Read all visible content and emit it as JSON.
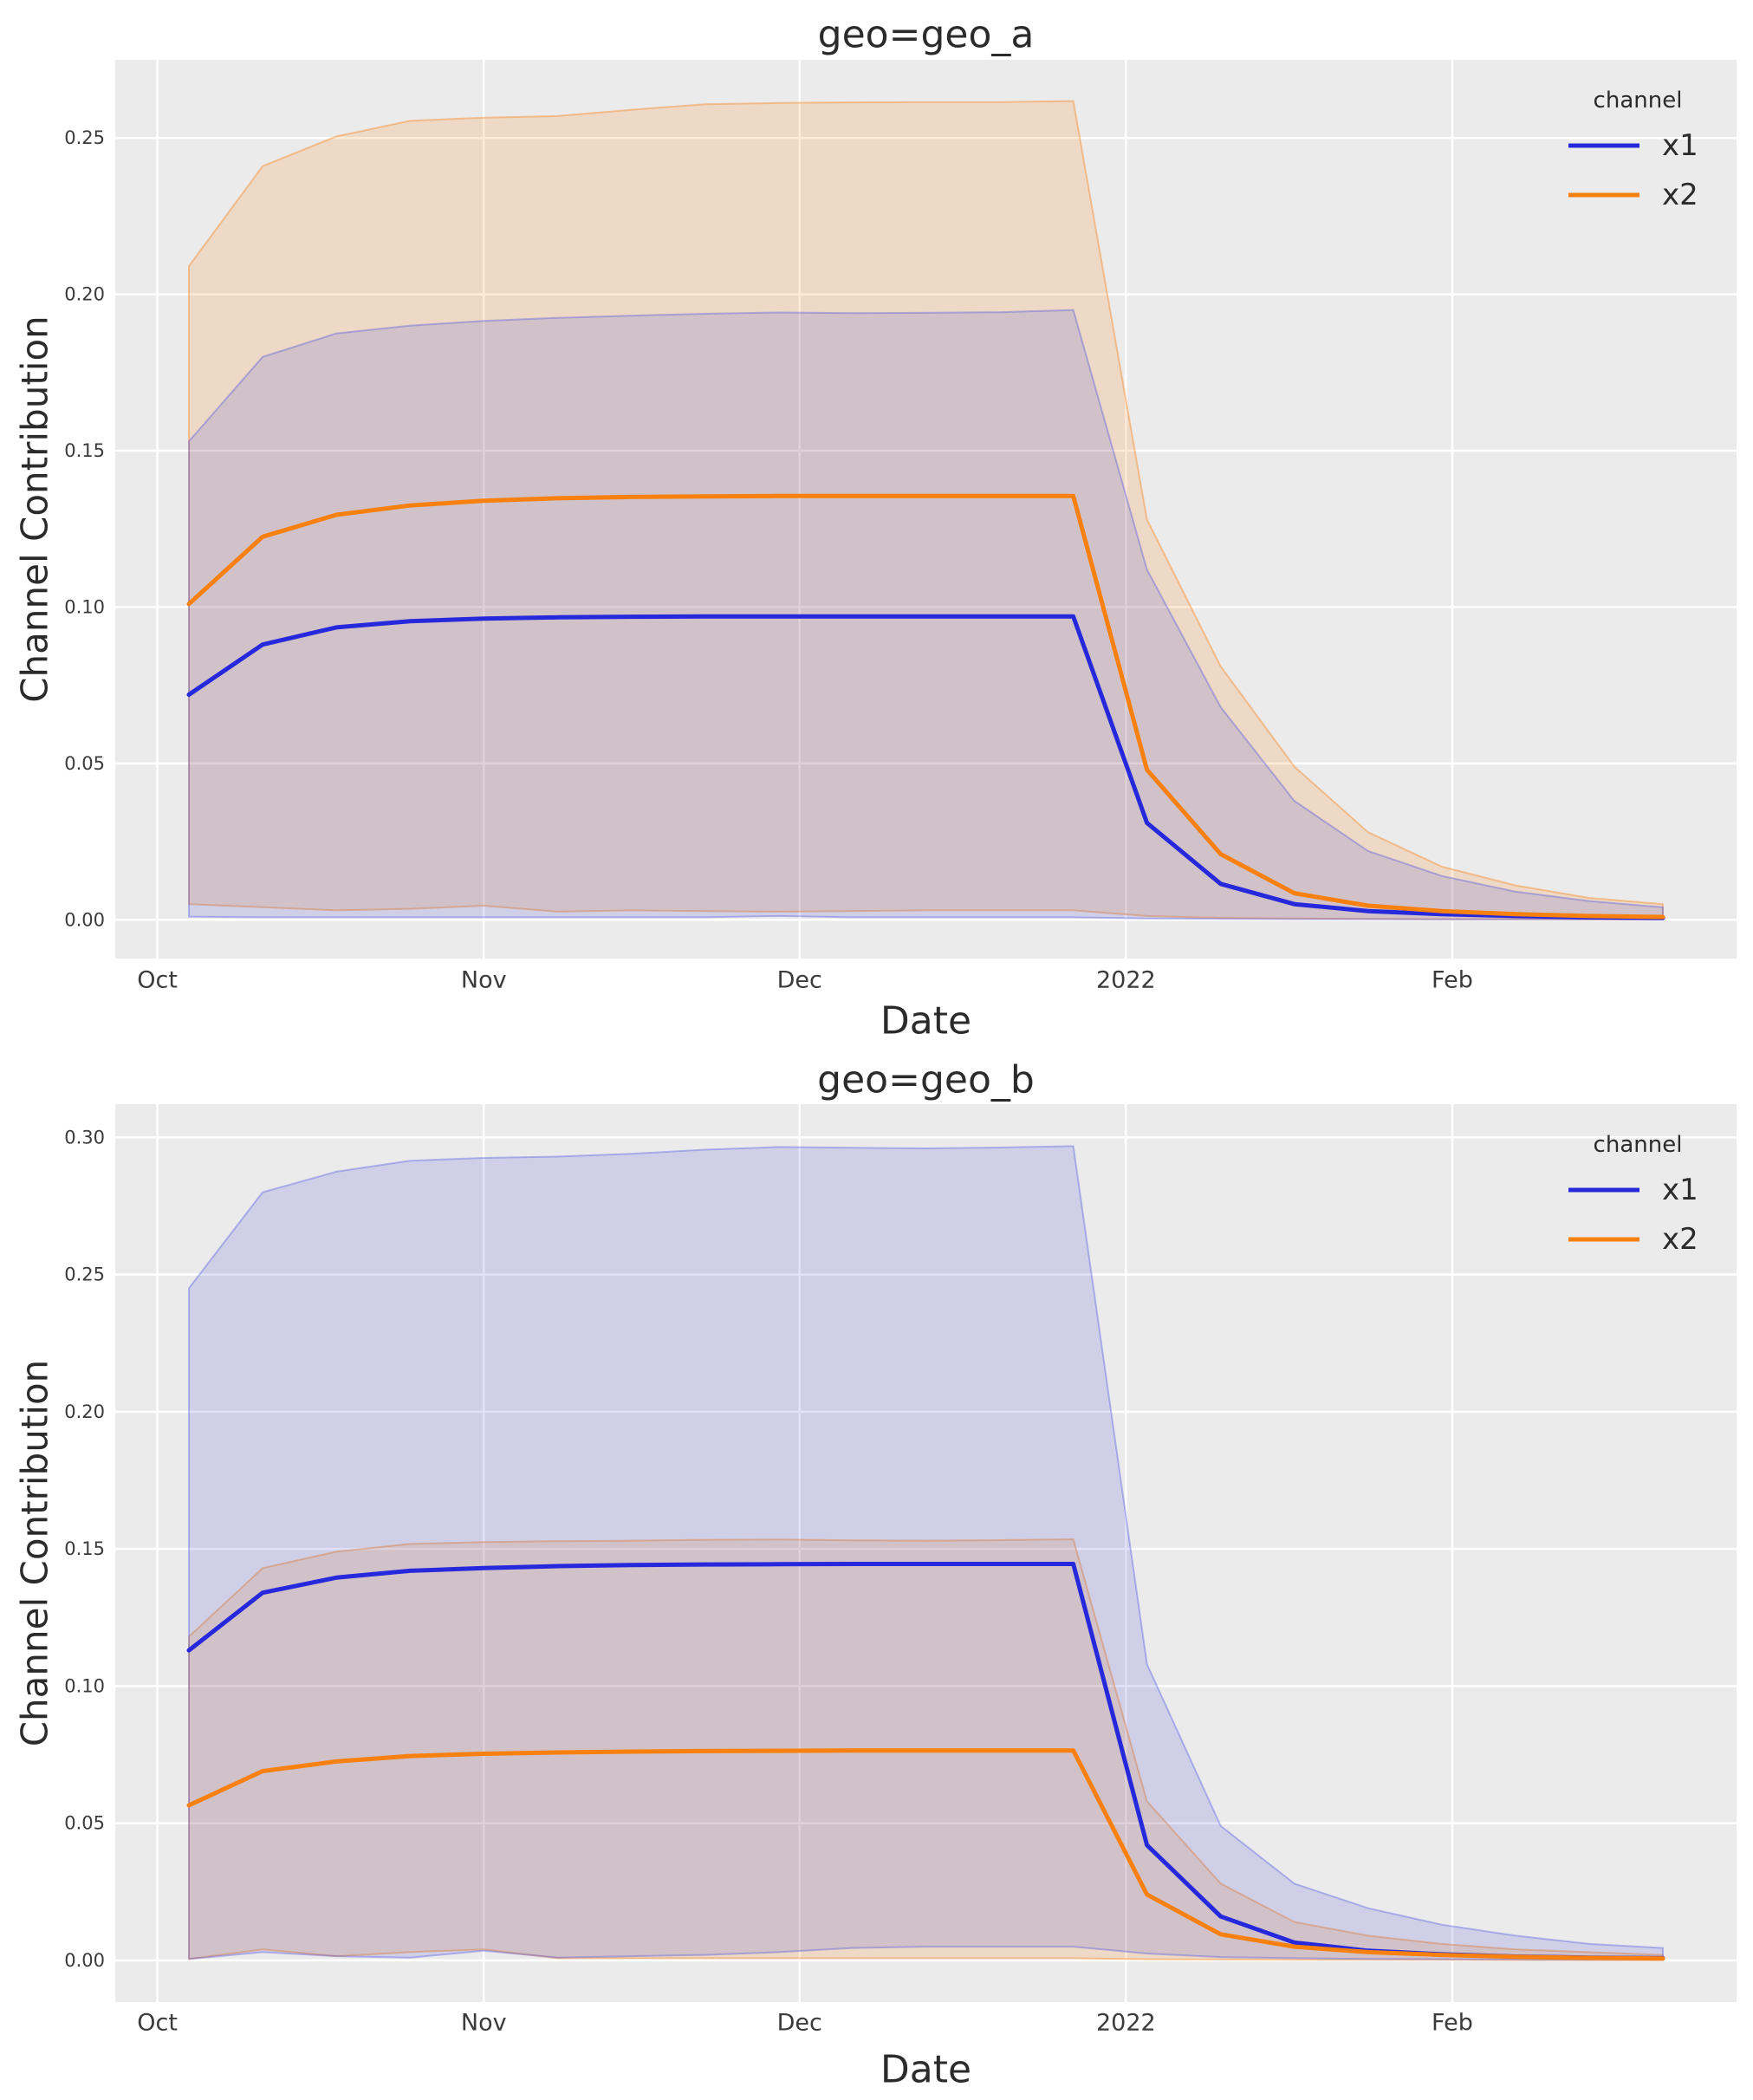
{
  "theme": {
    "figure_bg": "#ffffff",
    "axes_bg": "#ebebeb",
    "grid_color": "#ffffff",
    "text_color": "#3b3b3b",
    "title_color": "#2b2b2b",
    "x1_line_color": "#2628dc",
    "x2_line_color": "#f8800e",
    "x1_fill": "rgba(46,50,220,0.14)",
    "x1_edge": "rgba(70,75,225,0.35)",
    "x2_fill": "rgba(250,128,20,0.17)",
    "x2_edge": "rgba(250,128,20,0.40)"
  },
  "chart_data": [
    {
      "type": "line",
      "title": "geo=geo_a",
      "xlabel": "Date",
      "ylabel": "Channel Contribution",
      "grid": true,
      "legend": {
        "title": "channel",
        "position": "upper right",
        "entries": [
          "x1",
          "x2"
        ]
      },
      "x_days": [
        7,
        14,
        21,
        28,
        35,
        42,
        49,
        56,
        63,
        70,
        77,
        84,
        91,
        98,
        105,
        112,
        119,
        126,
        133,
        140,
        147
      ],
      "xlim_days": [
        0,
        154
      ],
      "xticks": {
        "days": [
          4,
          35,
          65,
          96,
          127
        ],
        "labels": [
          "Oct",
          "Nov",
          "Dec",
          "2022",
          "Feb"
        ]
      },
      "ylim": [
        -0.0124,
        0.275
      ],
      "yticks": [
        0.0,
        0.05,
        0.1,
        0.15,
        0.2,
        0.25
      ],
      "series": [
        {
          "name": "x1",
          "mean": [
            0.072,
            0.088,
            0.0935,
            0.0955,
            0.0963,
            0.0967,
            0.0969,
            0.097,
            0.097,
            0.097,
            0.097,
            0.097,
            0.097,
            0.031,
            0.0115,
            0.005,
            0.0028,
            0.0018,
            0.0012,
            0.0008,
            0.0006
          ],
          "lower": [
            0.001,
            0.0008,
            0.0008,
            0.0008,
            0.0008,
            0.0008,
            0.0008,
            0.0008,
            0.0012,
            0.0008,
            0.0008,
            0.0008,
            0.0008,
            0.0004,
            0.0003,
            0.0002,
            0.0002,
            0.0001,
            0.0001,
            0.0001,
            0.0001
          ],
          "upper": [
            0.153,
            0.18,
            0.1875,
            0.19,
            0.1915,
            0.1925,
            0.1932,
            0.1938,
            0.1942,
            0.194,
            0.1941,
            0.1943,
            0.195,
            0.112,
            0.068,
            0.038,
            0.022,
            0.014,
            0.009,
            0.006,
            0.004
          ]
        },
        {
          "name": "x2",
          "mean": [
            0.101,
            0.1225,
            0.1295,
            0.1325,
            0.134,
            0.1348,
            0.1352,
            0.1354,
            0.1355,
            0.1355,
            0.1355,
            0.1355,
            0.1355,
            0.048,
            0.021,
            0.0085,
            0.0045,
            0.0028,
            0.0018,
            0.0012,
            0.0009
          ],
          "lower": [
            0.005,
            0.004,
            0.003,
            0.0035,
            0.0045,
            0.0026,
            0.003,
            0.0028,
            0.0026,
            0.0028,
            0.003,
            0.003,
            0.003,
            0.0012,
            0.0006,
            0.0004,
            0.0003,
            0.0002,
            0.0002,
            0.0001,
            0.0001
          ],
          "upper": [
            0.209,
            0.241,
            0.2505,
            0.2555,
            0.2565,
            0.257,
            0.259,
            0.2608,
            0.2612,
            0.2614,
            0.2615,
            0.2615,
            0.2618,
            0.128,
            0.081,
            0.049,
            0.028,
            0.017,
            0.011,
            0.007,
            0.005
          ]
        }
      ]
    },
    {
      "type": "line",
      "title": "geo=geo_b",
      "xlabel": "Date",
      "ylabel": "Channel Contribution",
      "grid": true,
      "legend": {
        "title": "channel",
        "position": "upper right",
        "entries": [
          "x1",
          "x2"
        ]
      },
      "x_days": [
        7,
        14,
        21,
        28,
        35,
        42,
        49,
        56,
        63,
        70,
        77,
        84,
        91,
        98,
        105,
        112,
        119,
        126,
        133,
        140,
        147
      ],
      "xlim_days": [
        0,
        154
      ],
      "xticks": {
        "days": [
          4,
          35,
          65,
          96,
          127
        ],
        "labels": [
          "Oct",
          "Nov",
          "Dec",
          "2022",
          "Feb"
        ]
      },
      "ylim": [
        -0.0152,
        0.3121
      ],
      "yticks": [
        0.0,
        0.05,
        0.1,
        0.15,
        0.2,
        0.25,
        0.3
      ],
      "series": [
        {
          "name": "x1",
          "mean": [
            0.113,
            0.134,
            0.1395,
            0.142,
            0.143,
            0.1437,
            0.1441,
            0.1443,
            0.1444,
            0.1445,
            0.1445,
            0.1445,
            0.1445,
            0.042,
            0.016,
            0.0065,
            0.0035,
            0.0022,
            0.0014,
            0.001,
            0.0008
          ],
          "lower": [
            0.0005,
            0.003,
            0.0015,
            0.001,
            0.0035,
            0.001,
            0.0015,
            0.002,
            0.003,
            0.0045,
            0.005,
            0.005,
            0.005,
            0.0025,
            0.0012,
            0.0008,
            0.0005,
            0.0004,
            0.0003,
            0.0002,
            0.0002
          ],
          "upper": [
            0.245,
            0.28,
            0.2875,
            0.2915,
            0.2925,
            0.293,
            0.294,
            0.2955,
            0.2965,
            0.2962,
            0.296,
            0.2963,
            0.2968,
            0.108,
            0.049,
            0.028,
            0.019,
            0.013,
            0.009,
            0.006,
            0.0045
          ]
        },
        {
          "name": "x2",
          "mean": [
            0.0565,
            0.069,
            0.0725,
            0.0745,
            0.0753,
            0.0758,
            0.0761,
            0.0763,
            0.0764,
            0.0765,
            0.0765,
            0.0765,
            0.0765,
            0.024,
            0.0095,
            0.005,
            0.003,
            0.002,
            0.0013,
            0.0009,
            0.0007
          ],
          "lower": [
            0.0005,
            0.004,
            0.0015,
            0.003,
            0.004,
            0.0008,
            0.0008,
            0.0008,
            0.0008,
            0.0008,
            0.0008,
            0.0008,
            0.0008,
            0.0004,
            0.0003,
            0.0002,
            0.0002,
            0.0002,
            0.0001,
            0.0001,
            0.0001
          ],
          "upper": [
            0.118,
            0.143,
            0.149,
            0.1518,
            0.1525,
            0.1528,
            0.153,
            0.1533,
            0.1534,
            0.1531,
            0.153,
            0.1532,
            0.1535,
            0.058,
            0.028,
            0.014,
            0.009,
            0.006,
            0.004,
            0.003,
            0.002
          ]
        }
      ]
    }
  ]
}
